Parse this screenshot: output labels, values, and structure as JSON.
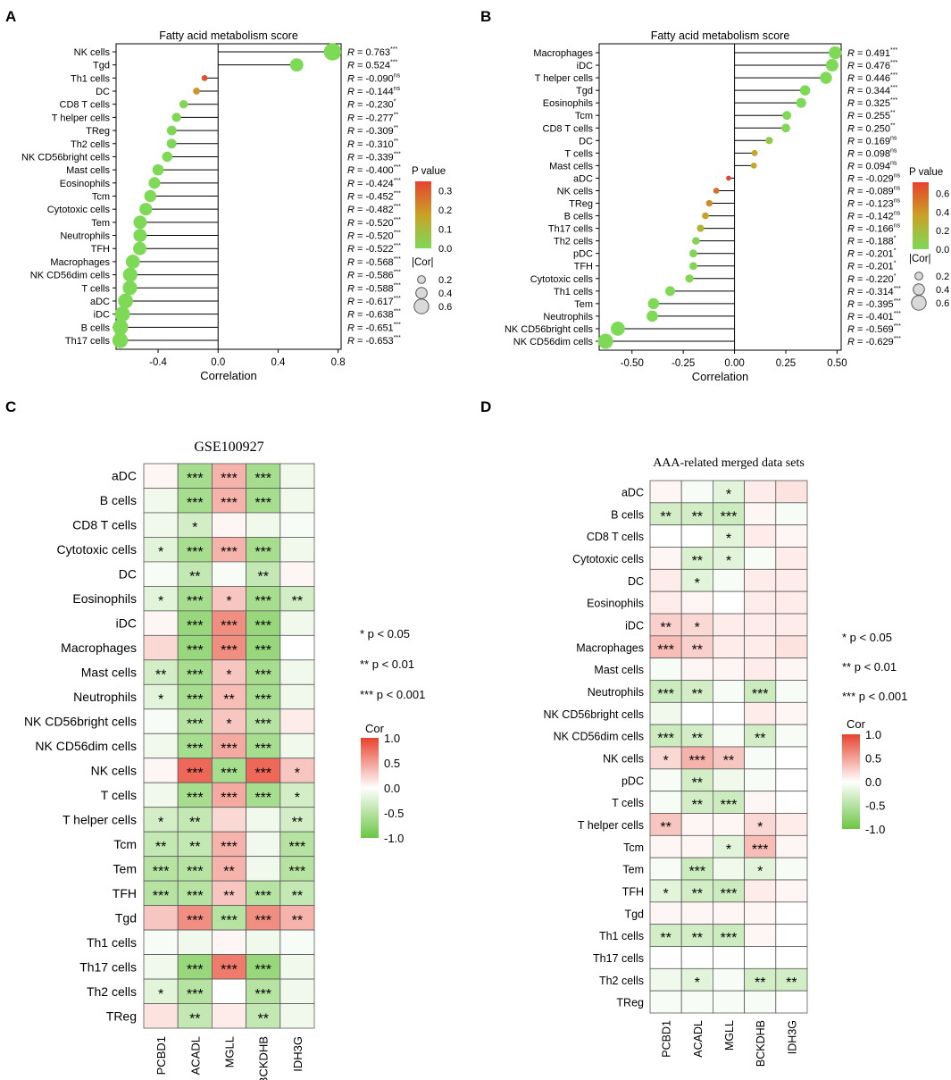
{
  "panel_labels": [
    "A",
    "B",
    "C",
    "D"
  ],
  "colors": {
    "p_low": "#7ed957",
    "p_mid": "#c9a227",
    "p_high": "#e8422e",
    "cor_pos": "#e8422e",
    "cor_neg": "#6cc644",
    "cor_zero": "#ffffff",
    "stem": "#000000"
  },
  "chart_data": [
    {
      "type": "lollipop",
      "panel": "A",
      "title": "Fatty acid metabolism score",
      "xlabel": "Correlation",
      "xlim": [
        -0.68,
        0.82
      ],
      "xticks": [
        -0.4,
        0.0,
        0.4,
        0.8
      ],
      "xtick_labels": [
        "-0.4",
        "0.0",
        "0.4",
        "0.8"
      ],
      "categories": [
        "NK cells",
        "Tgd",
        "Th1 cells",
        "DC",
        "CD8 T cells",
        "T helper cells",
        "TReg",
        "Th2 cells",
        "NK CD56bright cells",
        "Mast cells",
        "Eosinophils",
        "Tcm",
        "Cytotoxic cells",
        "Tem",
        "Neutrophils",
        "TFH",
        "Macrophages",
        "NK CD56dim cells",
        "T cells",
        "aDC",
        "iDC",
        "B cells",
        "Th17 cells"
      ],
      "values": [
        0.763,
        0.524,
        -0.09,
        -0.144,
        -0.23,
        -0.277,
        -0.309,
        -0.31,
        -0.339,
        -0.4,
        -0.424,
        -0.452,
        -0.482,
        -0.52,
        -0.52,
        -0.522,
        -0.568,
        -0.586,
        -0.588,
        -0.617,
        -0.638,
        -0.651,
        -0.653
      ],
      "p_values": [
        0,
        0,
        0.33,
        0.2,
        0.01,
        0.005,
        0.005,
        0.005,
        0,
        0,
        0,
        0,
        0,
        0,
        0,
        0,
        0,
        0,
        0,
        0,
        0,
        0,
        0
      ],
      "r_labels": [
        "0.763",
        "0.524",
        "-0.090",
        "-0.144",
        "-0.230",
        "-0.277",
        "-0.309",
        "-0.310",
        "-0.339",
        "-0.400",
        "-0.424",
        "-0.452",
        "-0.482",
        "-0.520",
        "-0.520",
        "-0.522",
        "-0.568",
        "-0.586",
        "-0.588",
        "-0.617",
        "-0.638",
        "-0.651",
        "-0.653"
      ],
      "sig": [
        "***",
        "***",
        "ns",
        "ns",
        "*",
        "**",
        "**",
        "**",
        "***",
        "***",
        "***",
        "***",
        "***",
        "***",
        "***",
        "***",
        "***",
        "***",
        "***",
        "***",
        "***",
        "***",
        "***"
      ],
      "legend_p": {
        "title": "P value",
        "ticks": [
          0.3,
          0.2,
          0.1,
          0.0
        ],
        "labels": [
          "0.3",
          "0.2",
          "0.1",
          "0.0"
        ],
        "max": 0.35
      },
      "legend_size": {
        "title": "|Cor|",
        "values": [
          0.2,
          0.4,
          0.6
        ],
        "labels": [
          "0.2",
          "0.4",
          "0.6"
        ]
      }
    },
    {
      "type": "lollipop",
      "panel": "B",
      "title": "Fatty acid metabolism score",
      "xlabel": "Correlation",
      "xlim": [
        -0.66,
        0.52
      ],
      "xticks": [
        -0.5,
        -0.25,
        0.0,
        0.25,
        0.5
      ],
      "xtick_labels": [
        "-0.50",
        "-0.25",
        "0.00",
        "0.25",
        "0.50"
      ],
      "categories": [
        "Macrophages",
        "iDC",
        "T helper cells",
        "Tgd",
        "Eosinophils",
        "Tcm",
        "CD8 T cells",
        "DC",
        "T cells",
        "Mast cells",
        "aDC",
        "NK cells",
        "TReg",
        "B cells",
        "Th17 cells",
        "Th2 cells",
        "pDC",
        "TFH",
        "Cytotoxic cells",
        "Th1 cells",
        "Tem",
        "Neutrophils",
        "NK CD56bright cells",
        "NK CD56dim cells"
      ],
      "values": [
        0.491,
        0.476,
        0.446,
        0.344,
        0.325,
        0.255,
        0.25,
        0.169,
        0.098,
        0.094,
        -0.029,
        -0.089,
        -0.123,
        -0.142,
        -0.166,
        -0.188,
        -0.201,
        -0.201,
        -0.22,
        -0.314,
        -0.395,
        -0.401,
        -0.569,
        -0.629
      ],
      "p_values": [
        0,
        0,
        0,
        0,
        0,
        0.005,
        0.005,
        0.1,
        0.35,
        0.35,
        0.75,
        0.55,
        0.45,
        0.35,
        0.25,
        0.04,
        0.03,
        0.03,
        0.02,
        0,
        0,
        0,
        0,
        0
      ],
      "r_labels": [
        "0.491",
        "0.476",
        "0.446",
        "0.344",
        "0.325",
        "0.255",
        "0.250",
        "0.169",
        "0.098",
        "0.094",
        "-0.029",
        "-0.089",
        "-0.123",
        "-0.142",
        "-0.166",
        "-0.188",
        "-0.201",
        "-0.201",
        "-0.220",
        "-0.314",
        "-0.395",
        "-0.401",
        "-0.569",
        "-0.629"
      ],
      "sig": [
        "***",
        "***",
        "***",
        "***",
        "***",
        "**",
        "**",
        "ns",
        "ns",
        "ns",
        "ns",
        "ns",
        "ns",
        "ns",
        "ns",
        "*",
        "*",
        "*",
        "*",
        "***",
        "***",
        "***",
        "***",
        "***"
      ],
      "legend_p": {
        "title": "P value",
        "ticks": [
          0.6,
          0.4,
          0.2,
          0.0
        ],
        "labels": [
          "0.6",
          "0.4",
          "0.2",
          "0.0"
        ],
        "max": 0.72
      },
      "legend_size": {
        "title": "|Cor|",
        "values": [
          0.2,
          0.4,
          0.6
        ],
        "labels": [
          "0.2",
          "0.4",
          "0.6"
        ]
      }
    },
    {
      "type": "heatmap",
      "panel": "C",
      "title": "GSE100927",
      "columns": [
        "PCBD1",
        "ACADL",
        "MGLL",
        "BCKDHB",
        "IDH3G"
      ],
      "rows": [
        "aDC",
        "B cells",
        "CD8 T cells",
        "Cytotoxic cells",
        "DC",
        "Eosinophils",
        "iDC",
        "Macrophages",
        "Mast cells",
        "Neutrophils",
        "NK CD56bright cells",
        "NK CD56dim cells",
        "NK cells",
        "T cells",
        "T helper cells",
        "Tcm",
        "Tem",
        "TFH",
        "Tgd",
        "Th1 cells",
        "Th17 cells",
        "Th2 cells",
        "TReg"
      ],
      "values": [
        [
          0.05,
          -0.6,
          0.4,
          -0.6,
          -0.1
        ],
        [
          -0.1,
          -0.6,
          0.4,
          -0.6,
          -0.1
        ],
        [
          -0.1,
          -0.3,
          0.05,
          -0.1,
          -0.05
        ],
        [
          -0.2,
          -0.6,
          0.4,
          -0.6,
          -0.1
        ],
        [
          -0.05,
          -0.4,
          -0.05,
          -0.4,
          0.05
        ],
        [
          -0.2,
          -0.6,
          0.3,
          -0.6,
          -0.3
        ],
        [
          0.05,
          -0.7,
          0.6,
          -0.7,
          -0.1
        ],
        [
          0.2,
          -0.7,
          0.6,
          -0.7,
          0.0
        ],
        [
          -0.3,
          -0.6,
          0.3,
          -0.6,
          -0.1
        ],
        [
          -0.2,
          -0.6,
          0.35,
          -0.6,
          -0.1
        ],
        [
          -0.05,
          -0.5,
          0.3,
          -0.5,
          0.1
        ],
        [
          -0.1,
          -0.6,
          0.45,
          -0.6,
          -0.1
        ],
        [
          0.05,
          0.8,
          -0.6,
          0.8,
          0.3
        ],
        [
          -0.1,
          -0.6,
          0.45,
          -0.6,
          -0.3
        ],
        [
          -0.3,
          -0.4,
          0.2,
          -0.1,
          -0.3
        ],
        [
          -0.4,
          -0.4,
          0.4,
          -0.1,
          -0.5
        ],
        [
          -0.5,
          -0.5,
          0.4,
          -0.1,
          -0.5
        ],
        [
          -0.5,
          -0.5,
          0.3,
          -0.5,
          -0.4
        ],
        [
          0.3,
          0.6,
          -0.5,
          0.6,
          0.4
        ],
        [
          -0.05,
          -0.1,
          0.05,
          -0.1,
          -0.05
        ],
        [
          -0.1,
          -0.7,
          0.7,
          -0.7,
          -0.1
        ],
        [
          -0.2,
          -0.5,
          0.0,
          -0.5,
          -0.1
        ],
        [
          0.15,
          -0.4,
          0.1,
          -0.4,
          -0.1
        ]
      ],
      "stars": [
        [
          "",
          "***",
          "***",
          "***",
          ""
        ],
        [
          "",
          "***",
          "***",
          "***",
          ""
        ],
        [
          "",
          "*",
          "",
          "",
          ""
        ],
        [
          "*",
          "***",
          "***",
          "***",
          ""
        ],
        [
          "",
          "**",
          "",
          "**",
          ""
        ],
        [
          "*",
          "***",
          "*",
          "***",
          "**"
        ],
        [
          "",
          "***",
          "***",
          "***",
          ""
        ],
        [
          "",
          "***",
          "***",
          "***",
          ""
        ],
        [
          "**",
          "***",
          "*",
          "***",
          ""
        ],
        [
          "*",
          "***",
          "**",
          "***",
          ""
        ],
        [
          "",
          "***",
          "*",
          "***",
          ""
        ],
        [
          "",
          "***",
          "***",
          "***",
          ""
        ],
        [
          "",
          "***",
          "***",
          "***",
          "*"
        ],
        [
          "",
          "***",
          "***",
          "***",
          "*"
        ],
        [
          "*",
          "**",
          "",
          "",
          "**"
        ],
        [
          "**",
          "**",
          "***",
          "",
          "***"
        ],
        [
          "***",
          "***",
          "**",
          "",
          "***"
        ],
        [
          "***",
          "***",
          "**",
          "***",
          "**"
        ],
        [
          "",
          "***",
          "***",
          "***",
          "**"
        ],
        [
          "",
          "",
          "",
          "",
          ""
        ],
        [
          "",
          "***",
          "***",
          "***",
          ""
        ],
        [
          "*",
          "***",
          "",
          "***",
          ""
        ],
        [
          "",
          "**",
          "",
          "**",
          ""
        ]
      ],
      "sig_legend": [
        "* p < 0.05",
        "** p < 0.01",
        "*** p < 0.001"
      ],
      "colorbar": {
        "title": "Cor",
        "ticks": [
          1.0,
          0.5,
          0.0,
          -0.5,
          -1.0
        ],
        "labels": [
          "1.0",
          "0.5",
          "0.0",
          "-0.5",
          "-1.0"
        ]
      }
    },
    {
      "type": "heatmap",
      "panel": "D",
      "title": "AAA-related merged data sets",
      "columns": [
        "PCBD1",
        "ACADL",
        "MGLL",
        "BCKDHB",
        "IDH3G"
      ],
      "rows": [
        "aDC",
        "B cells",
        "CD8 T cells",
        "Cytotoxic cells",
        "DC",
        "Eosinophils",
        "iDC",
        "Macrophages",
        "Mast cells",
        "Neutrophils",
        "NK CD56bright cells",
        "NK CD56dim cells",
        "NK cells",
        "pDC",
        "T cells",
        "T helper cells",
        "Tcm",
        "Tem",
        "TFH",
        "Tgd",
        "Th1 cells",
        "Th17 cells",
        "Th2 cells",
        "TReg"
      ],
      "values": [
        [
          0.05,
          -0.05,
          -0.2,
          0.1,
          0.15
        ],
        [
          -0.3,
          -0.3,
          -0.35,
          0.05,
          -0.05
        ],
        [
          0.0,
          0.0,
          -0.2,
          0.1,
          0.05
        ],
        [
          0.05,
          -0.25,
          -0.2,
          -0.05,
          0.1
        ],
        [
          0.1,
          -0.2,
          -0.05,
          0.1,
          0.1
        ],
        [
          0.1,
          0.05,
          0.0,
          0.1,
          0.1
        ],
        [
          0.25,
          0.2,
          0.1,
          0.1,
          0.1
        ],
        [
          0.35,
          0.25,
          0.1,
          0.1,
          0.15
        ],
        [
          -0.05,
          0.05,
          0.05,
          0.1,
          0.05
        ],
        [
          -0.35,
          -0.3,
          -0.05,
          -0.35,
          -0.05
        ],
        [
          -0.1,
          0.0,
          0.0,
          0.1,
          0.05
        ],
        [
          -0.35,
          -0.3,
          -0.05,
          -0.3,
          -0.05
        ],
        [
          0.2,
          0.4,
          0.3,
          -0.05,
          0.0
        ],
        [
          -0.05,
          -0.3,
          -0.1,
          -0.05,
          0.0
        ],
        [
          -0.05,
          -0.3,
          -0.35,
          0.05,
          0.0
        ],
        [
          0.3,
          0.05,
          0.05,
          0.2,
          0.1
        ],
        [
          0.05,
          0.05,
          -0.2,
          0.35,
          0.05
        ],
        [
          -0.05,
          -0.35,
          -0.1,
          -0.2,
          -0.05
        ],
        [
          -0.2,
          -0.3,
          -0.35,
          0.1,
          0.05
        ],
        [
          0.05,
          0.05,
          0.05,
          0.05,
          0.0
        ],
        [
          -0.3,
          -0.3,
          -0.35,
          0.05,
          0.0
        ],
        [
          0.0,
          0.0,
          0.0,
          0.0,
          0.0
        ],
        [
          -0.1,
          -0.2,
          -0.05,
          -0.3,
          -0.3
        ],
        [
          -0.05,
          -0.05,
          -0.05,
          -0.05,
          0.0
        ]
      ],
      "stars": [
        [
          "",
          "",
          "*",
          "",
          ""
        ],
        [
          "**",
          "**",
          "***",
          "",
          ""
        ],
        [
          "",
          "",
          "*",
          "",
          ""
        ],
        [
          "",
          "**",
          "*",
          "",
          ""
        ],
        [
          "",
          "*",
          "",
          "",
          ""
        ],
        [
          "",
          "",
          "",
          "",
          ""
        ],
        [
          "**",
          "*",
          "",
          "",
          ""
        ],
        [
          "***",
          "**",
          "",
          "",
          ""
        ],
        [
          "",
          "",
          "",
          "",
          ""
        ],
        [
          "***",
          "**",
          "",
          "***",
          ""
        ],
        [
          "",
          "",
          "",
          "",
          ""
        ],
        [
          "***",
          "**",
          "",
          "**",
          ""
        ],
        [
          "*",
          "***",
          "**",
          "",
          ""
        ],
        [
          "",
          "**",
          "",
          "",
          ""
        ],
        [
          "",
          "**",
          "***",
          "",
          ""
        ],
        [
          "**",
          "",
          "",
          "*",
          ""
        ],
        [
          "",
          "",
          "*",
          "***",
          ""
        ],
        [
          "",
          "***",
          "",
          "*",
          ""
        ],
        [
          "*",
          "**",
          "***",
          "",
          ""
        ],
        [
          "",
          "",
          "",
          "",
          ""
        ],
        [
          "**",
          "**",
          "***",
          "",
          ""
        ],
        [
          "",
          "",
          "",
          "",
          ""
        ],
        [
          "",
          "*",
          "",
          "**",
          "**"
        ],
        [
          "",
          "",
          "",
          "",
          ""
        ]
      ],
      "sig_legend": [
        "* p < 0.05",
        "** p < 0.01",
        "*** p < 0.001"
      ],
      "colorbar": {
        "title": "Cor",
        "ticks": [
          1.0,
          0.5,
          0.0,
          -0.5,
          -1.0
        ],
        "labels": [
          "1.0",
          "0.5",
          "0.0",
          "-0.5",
          "-1.0"
        ]
      }
    }
  ]
}
